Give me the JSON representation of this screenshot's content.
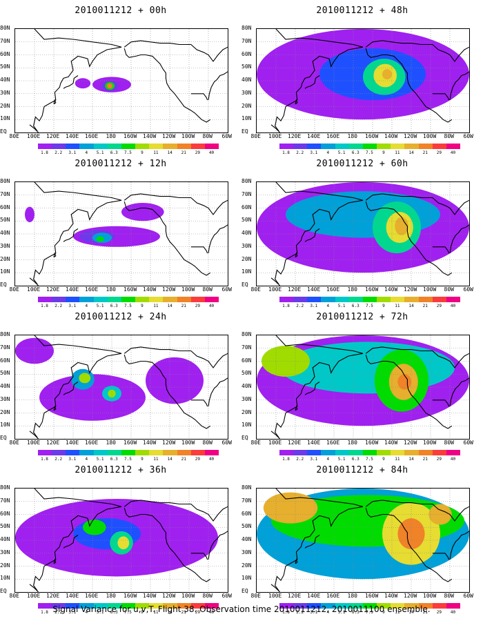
{
  "caption": "Signal Variance for u,v,T. Flight 38. Observation time 2010011212. 2010011100 ensemble.",
  "chart_data": {
    "type": "heatmap",
    "grid": true,
    "legend_placement": "bottom",
    "lat_ticks": [
      "EQ",
      "10N",
      "20N",
      "30N",
      "40N",
      "50N",
      "60N",
      "70N",
      "80N"
    ],
    "lon_ticks": [
      "80E",
      "100E",
      "120E",
      "140E",
      "160E",
      "180",
      "160W",
      "140W",
      "120W",
      "100W",
      "80W",
      "60W"
    ],
    "lon_range_deg_east": [
      80,
      300
    ],
    "lat_range_deg": [
      0,
      80
    ],
    "contour_levels": [
      "1.8",
      "2.2",
      "3.1",
      "4",
      "5.1",
      "6.3",
      "7.5",
      "9",
      "11",
      "14",
      "21",
      "29",
      "40"
    ],
    "level_colors": [
      "#a020f0",
      "#6c3ae8",
      "#1e50ff",
      "#00a0d8",
      "#00c8c8",
      "#00d890",
      "#00dc00",
      "#a0dc00",
      "#e6dc32",
      "#e6af2d",
      "#f08228",
      "#fa3c3c",
      "#f00082"
    ],
    "panels": [
      {
        "title": "2010011212 + 00h",
        "column": "left",
        "row": 0,
        "features": [
          {
            "lon": 180,
            "lat": 37,
            "rlon": 20,
            "rlat": 6,
            "level": 0
          },
          {
            "lon": 150,
            "lat": 38,
            "rlon": 8,
            "rlat": 4,
            "level": 0
          },
          {
            "lon": 178,
            "lat": 36,
            "rlon": 9,
            "rlat": 4,
            "level": 1
          },
          {
            "lon": 178,
            "lat": 36,
            "rlon": 5,
            "rlat": 3,
            "level": 6
          },
          {
            "lon": 178,
            "lat": 36,
            "rlon": 3,
            "rlat": 2,
            "level": 10
          }
        ]
      },
      {
        "title": "2010011212 + 12h",
        "column": "left",
        "row": 1,
        "features": [
          {
            "lon": 185,
            "lat": 38,
            "rlon": 45,
            "rlat": 8,
            "level": 0
          },
          {
            "lon": 95,
            "lat": 55,
            "rlon": 5,
            "rlat": 6,
            "level": 0
          },
          {
            "lon": 212,
            "lat": 57,
            "rlon": 22,
            "rlat": 7,
            "level": 0
          },
          {
            "lon": 165,
            "lat": 38,
            "rlon": 18,
            "rlat": 5,
            "level": 1
          },
          {
            "lon": 170,
            "lat": 37,
            "rlon": 10,
            "rlat": 4,
            "level": 3
          },
          {
            "lon": 168,
            "lat": 36,
            "rlon": 4,
            "rlat": 2,
            "level": 6
          }
        ]
      },
      {
        "title": "2010011212 + 24h",
        "column": "left",
        "row": 2,
        "features": [
          {
            "lon": 160,
            "lat": 32,
            "rlon": 55,
            "rlat": 18,
            "level": 0
          },
          {
            "lon": 245,
            "lat": 45,
            "rlon": 30,
            "rlat": 18,
            "level": 0
          },
          {
            "lon": 100,
            "lat": 68,
            "rlon": 20,
            "rlat": 10,
            "level": 0
          },
          {
            "lon": 150,
            "lat": 46,
            "rlon": 12,
            "rlat": 8,
            "level": 3
          },
          {
            "lon": 152,
            "lat": 47,
            "rlon": 6,
            "rlat": 4,
            "level": 7
          },
          {
            "lon": 180,
            "lat": 35,
            "rlon": 10,
            "rlat": 6,
            "level": 4
          },
          {
            "lon": 180,
            "lat": 35,
            "rlon": 4,
            "rlat": 3,
            "level": 7
          }
        ]
      },
      {
        "title": "2010011212 + 36h",
        "column": "left",
        "row": 3,
        "features": [
          {
            "lon": 185,
            "lat": 42,
            "rlon": 105,
            "rlat": 30,
            "level": 0
          },
          {
            "lon": 175,
            "lat": 45,
            "rlon": 35,
            "rlat": 12,
            "level": 2
          },
          {
            "lon": 162,
            "lat": 50,
            "rlon": 12,
            "rlat": 6,
            "level": 6
          },
          {
            "lon": 190,
            "lat": 38,
            "rlon": 12,
            "rlat": 9,
            "level": 5
          },
          {
            "lon": 192,
            "lat": 38,
            "rlon": 6,
            "rlat": 5,
            "level": 8
          }
        ]
      },
      {
        "title": "2010011212 + 48h",
        "column": "right",
        "row": 0,
        "features": [
          {
            "lon": 190,
            "lat": 45,
            "rlon": 110,
            "rlat": 35,
            "level": 0
          },
          {
            "lon": 200,
            "lat": 45,
            "rlon": 55,
            "rlat": 20,
            "level": 2
          },
          {
            "lon": 212,
            "lat": 43,
            "rlon": 22,
            "rlat": 14,
            "level": 5
          },
          {
            "lon": 213,
            "lat": 44,
            "rlon": 12,
            "rlat": 9,
            "level": 8
          },
          {
            "lon": 215,
            "lat": 45,
            "rlon": 5,
            "rlat": 4,
            "level": 9
          }
        ]
      },
      {
        "title": "2010011212 + 60h",
        "column": "right",
        "row": 1,
        "features": [
          {
            "lon": 190,
            "lat": 45,
            "rlon": 110,
            "rlat": 35,
            "level": 0
          },
          {
            "lon": 190,
            "lat": 55,
            "rlon": 80,
            "rlat": 18,
            "level": 3
          },
          {
            "lon": 225,
            "lat": 45,
            "rlon": 25,
            "rlat": 20,
            "level": 5
          },
          {
            "lon": 228,
            "lat": 45,
            "rlon": 14,
            "rlat": 12,
            "level": 8
          },
          {
            "lon": 230,
            "lat": 46,
            "rlon": 7,
            "rlat": 7,
            "level": 9
          }
        ]
      },
      {
        "title": "2010011212 + 72h",
        "column": "right",
        "row": 2,
        "features": [
          {
            "lon": 190,
            "lat": 45,
            "rlon": 110,
            "rlat": 35,
            "level": 0
          },
          {
            "lon": 195,
            "lat": 55,
            "rlon": 90,
            "rlat": 20,
            "level": 4
          },
          {
            "lon": 110,
            "lat": 60,
            "rlon": 25,
            "rlat": 12,
            "level": 7
          },
          {
            "lon": 230,
            "lat": 45,
            "rlon": 28,
            "rlat": 24,
            "level": 6
          },
          {
            "lon": 232,
            "lat": 44,
            "rlon": 15,
            "rlat": 14,
            "level": 9
          },
          {
            "lon": 233,
            "lat": 44,
            "rlon": 7,
            "rlat": 6,
            "level": 10
          }
        ]
      },
      {
        "title": "2010011212 + 84h",
        "column": "right",
        "row": 3,
        "features": [
          {
            "lon": 190,
            "lat": 45,
            "rlon": 110,
            "rlat": 35,
            "level": 3
          },
          {
            "lon": 195,
            "lat": 55,
            "rlon": 100,
            "rlat": 20,
            "level": 6
          },
          {
            "lon": 115,
            "lat": 65,
            "rlon": 28,
            "rlat": 12,
            "level": 9
          },
          {
            "lon": 240,
            "lat": 45,
            "rlon": 30,
            "rlat": 24,
            "level": 8
          },
          {
            "lon": 240,
            "lat": 45,
            "rlon": 14,
            "rlat": 12,
            "level": 10
          },
          {
            "lon": 270,
            "lat": 60,
            "rlon": 12,
            "rlat": 8,
            "level": 9
          }
        ]
      }
    ]
  }
}
